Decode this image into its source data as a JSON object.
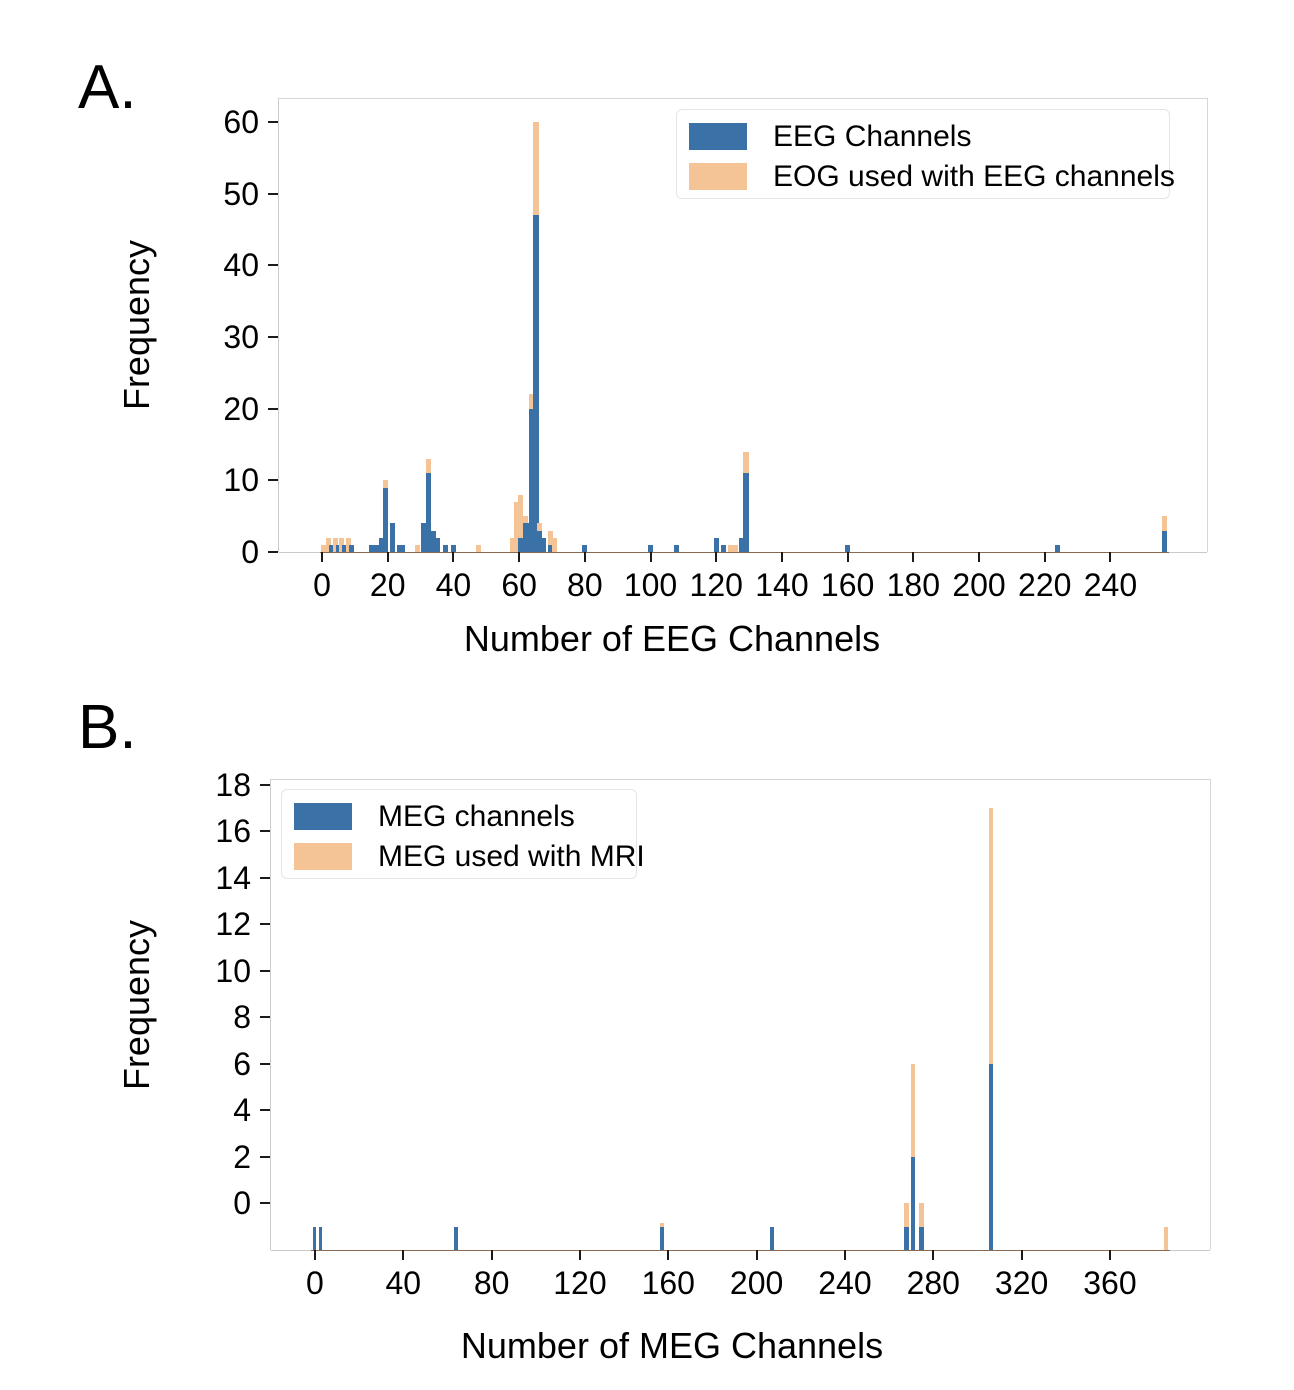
{
  "colors": {
    "blue": "#3a72a8",
    "orange": "#f4c496",
    "spine": "#cfcfcf",
    "baseline_data_range": "#8a6a52",
    "tick_mark": "#1a1a1a"
  },
  "chart_data": [
    {
      "type": "bar",
      "panel_label": "A.",
      "title": "",
      "xlabel": "Number of EEG Channels",
      "ylabel": "Frequency",
      "series": [
        {
          "name": "EEG Channels",
          "color": "#3a72a8"
        },
        {
          "name": "EOG used with EEG channels",
          "color": "#f4c496"
        }
      ],
      "legend_position": "upper right inside",
      "grid": false,
      "x_ticks": [
        0,
        20,
        40,
        60,
        80,
        100,
        120,
        140,
        160,
        180,
        200,
        220,
        240
      ],
      "y_ticks": [
        0,
        10,
        20,
        30,
        40,
        50,
        60
      ],
      "xlim": [
        -13.1,
        269.4
      ],
      "ylim": [
        0,
        63.2
      ],
      "bar_base": 0,
      "note": "overlaid (not stacked) histograms; orange drawn behind blue; values are bar-top frequencies",
      "bars": [
        {
          "x": 0.5,
          "orange": 1
        },
        {
          "x": 2,
          "orange": 2
        },
        {
          "x": 2.9,
          "blue": 1
        },
        {
          "x": 4,
          "orange": 2
        },
        {
          "x": 4.9,
          "blue": 1
        },
        {
          "x": 6,
          "orange": 2
        },
        {
          "x": 6.9,
          "blue": 1
        },
        {
          "x": 8,
          "orange": 2
        },
        {
          "x": 8.9,
          "blue": 1
        },
        {
          "x": 15,
          "blue": 1
        },
        {
          "x": 16.1,
          "blue": 1
        },
        {
          "x": 17.2,
          "blue": 1
        },
        {
          "x": 18.2,
          "blue": 2
        },
        {
          "x": 19.3,
          "blue": 9,
          "orange": 10,
          "w": 5
        },
        {
          "x": 21.5,
          "blue": 4
        },
        {
          "x": 23.5,
          "blue": 1
        },
        {
          "x": 24.6,
          "blue": 1
        },
        {
          "x": 29,
          "orange": 1
        },
        {
          "x": 31,
          "blue": 4
        },
        {
          "x": 32.4,
          "blue": 11,
          "orange": 13,
          "w": 5
        },
        {
          "x": 34,
          "blue": 3
        },
        {
          "x": 35.3,
          "blue": 2
        },
        {
          "x": 37.5,
          "blue": 1
        },
        {
          "x": 40,
          "blue": 1
        },
        {
          "x": 47.5,
          "orange": 1
        },
        {
          "x": 58,
          "orange": 2
        },
        {
          "x": 59.3,
          "orange": 7
        },
        {
          "x": 60.5,
          "blue": 2,
          "orange": 8
        },
        {
          "x": 61.8,
          "blue": 4,
          "orange": 5
        },
        {
          "x": 63,
          "blue": 4
        },
        {
          "x": 63.9,
          "blue": 20,
          "orange": 22
        },
        {
          "x": 65,
          "blue": 47,
          "orange": 60,
          "w": 6
        },
        {
          "x": 66.3,
          "blue": 3,
          "orange": 4
        },
        {
          "x": 67.5,
          "blue": 2
        },
        {
          "x": 69.5,
          "blue": 1,
          "orange": 3
        },
        {
          "x": 70.8,
          "orange": 2
        },
        {
          "x": 79.8,
          "blue": 1
        },
        {
          "x": 100,
          "blue": 1
        },
        {
          "x": 108,
          "blue": 1
        },
        {
          "x": 120,
          "blue": 2
        },
        {
          "x": 122.3,
          "blue": 1
        },
        {
          "x": 124.3,
          "orange": 1
        },
        {
          "x": 126,
          "orange": 1
        },
        {
          "x": 127.6,
          "blue": 2
        },
        {
          "x": 129,
          "blue": 11,
          "orange": 14,
          "w": 6
        },
        {
          "x": 160,
          "blue": 1
        },
        {
          "x": 224,
          "blue": 1
        },
        {
          "x": 256.5,
          "blue": 3,
          "orange": 5,
          "w": 5
        }
      ]
    },
    {
      "type": "bar",
      "panel_label": "B.",
      "title": "",
      "xlabel": "Number of MEG Channels",
      "ylabel": "Frequency",
      "series": [
        {
          "name": "MEG channels",
          "color": "#3a72a8"
        },
        {
          "name": "MEG used with MRI",
          "color": "#f4c496"
        }
      ],
      "legend_position": "upper left inside",
      "grid": false,
      "x_ticks": [
        0,
        40,
        80,
        120,
        160,
        200,
        240,
        280,
        320,
        360
      ],
      "y_ticks": [
        0,
        2,
        4,
        6,
        8,
        10,
        12,
        14,
        16,
        18
      ],
      "xlim": [
        -19.9,
        405.3
      ],
      "ylim": [
        -2,
        18.2
      ],
      "bar_base": -2,
      "note": "bars rise from the axes bottom (y = -2); 'blue'/'orange' give the y-axis reading of each bar top",
      "bars": [
        {
          "x": 0,
          "blue": -1,
          "w": 3
        },
        {
          "x": 2.6,
          "blue": -1,
          "w": 3
        },
        {
          "x": 64,
          "blue": -1
        },
        {
          "x": 157,
          "blue": -1,
          "orange": -0.85
        },
        {
          "x": 207,
          "blue": -1
        },
        {
          "x": 268,
          "blue": -1,
          "orange": 0,
          "w": 5
        },
        {
          "x": 271,
          "blue": 2,
          "orange": 6
        },
        {
          "x": 274.5,
          "blue": -1,
          "orange": 0,
          "w": 5
        },
        {
          "x": 306,
          "blue": 6,
          "orange": 17
        },
        {
          "x": 385.5,
          "orange": -1
        }
      ]
    }
  ]
}
